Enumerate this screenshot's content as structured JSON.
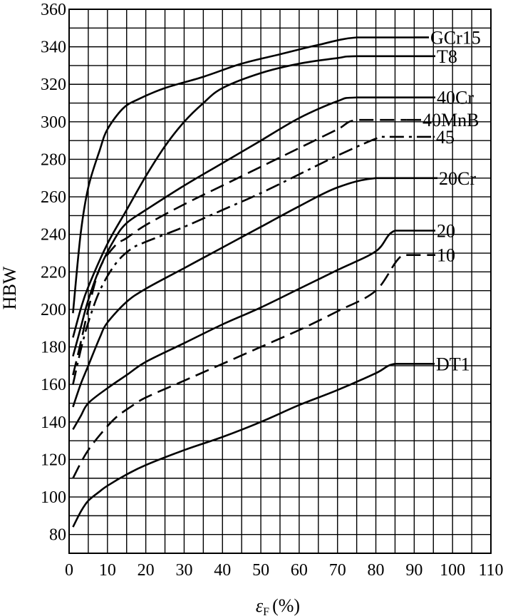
{
  "chart_data": {
    "type": "line",
    "title": "",
    "xlabel_symbol": "ε",
    "xlabel_subscript": "F",
    "xlabel_unit": "(%)",
    "ylabel": "HBW",
    "xlim": [
      0,
      110
    ],
    "ylim": [
      70,
      360
    ],
    "grid": true,
    "xticks": [
      0,
      10,
      20,
      30,
      40,
      50,
      60,
      70,
      80,
      90,
      100,
      110
    ],
    "yticks": [
      80,
      100,
      120,
      140,
      160,
      180,
      200,
      220,
      240,
      260,
      280,
      300,
      320,
      340,
      360
    ],
    "series": [
      {
        "name": "GCr15",
        "style": "solid",
        "x": [
          1,
          3,
          5,
          8,
          10,
          14,
          18,
          25,
          35,
          45,
          55,
          65,
          75,
          90
        ],
        "y": [
          198,
          240,
          265,
          285,
          296,
          307,
          312,
          318,
          324,
          331,
          336,
          341,
          345,
          345
        ]
      },
      {
        "name": "T8",
        "style": "solid",
        "x": [
          1,
          3,
          5,
          10,
          15,
          20,
          25,
          30,
          35,
          40,
          50,
          60,
          70,
          75,
          95
        ],
        "y": [
          185,
          200,
          212,
          235,
          253,
          271,
          287,
          300,
          310,
          318,
          326,
          331,
          334,
          335,
          335
        ]
      },
      {
        "name": "40Cr",
        "style": "solid",
        "x": [
          1,
          3,
          5,
          8,
          12,
          15,
          20,
          30,
          40,
          50,
          60,
          70,
          75,
          95
        ],
        "y": [
          175,
          190,
          205,
          222,
          238,
          246,
          253,
          266,
          278,
          290,
          302,
          311,
          313,
          313
        ]
      },
      {
        "name": "40MnB",
        "style": "dash",
        "x": [
          1,
          3,
          5,
          8,
          12,
          15,
          20,
          30,
          40,
          50,
          60,
          70,
          75,
          88
        ],
        "y": [
          165,
          182,
          200,
          222,
          234,
          238,
          245,
          256,
          266,
          276,
          286,
          296,
          301,
          301
        ]
      },
      {
        "name": "45",
        "style": "dashdot",
        "x": [
          1,
          3,
          5,
          8,
          12,
          16,
          20,
          30,
          40,
          50,
          60,
          70,
          80,
          83,
          95
        ],
        "y": [
          160,
          178,
          193,
          210,
          224,
          232,
          236,
          244,
          253,
          262,
          272,
          282,
          291,
          292,
          292
        ]
      },
      {
        "name": "20Cr",
        "style": "solid",
        "x": [
          1,
          3,
          5,
          8,
          10,
          15,
          20,
          30,
          40,
          50,
          60,
          70,
          80,
          95
        ],
        "y": [
          148,
          160,
          170,
          185,
          193,
          204,
          211,
          222,
          233,
          244,
          255,
          265,
          270,
          270
        ]
      },
      {
        "name": "20",
        "style": "solid",
        "x": [
          1,
          3,
          5,
          10,
          15,
          20,
          30,
          40,
          50,
          60,
          70,
          80,
          85,
          95
        ],
        "y": [
          136,
          143,
          150,
          158,
          165,
          172,
          182,
          192,
          201,
          211,
          221,
          231,
          242,
          242
        ]
      },
      {
        "name": "10",
        "style": "dash",
        "x": [
          1,
          3,
          5,
          8,
          12,
          16,
          20,
          30,
          40,
          50,
          60,
          70,
          80,
          87,
          95
        ],
        "y": [
          110,
          118,
          125,
          133,
          142,
          148,
          153,
          162,
          171,
          180,
          189,
          199,
          210,
          229,
          229
        ]
      },
      {
        "name": "DT1",
        "style": "solid",
        "x": [
          1,
          3,
          5,
          8,
          10,
          15,
          20,
          30,
          40,
          50,
          60,
          70,
          80,
          85,
          95
        ],
        "y": [
          84,
          92,
          98,
          103,
          106,
          112,
          117,
          125,
          132,
          140,
          149,
          157,
          166,
          171,
          171
        ]
      }
    ]
  }
}
